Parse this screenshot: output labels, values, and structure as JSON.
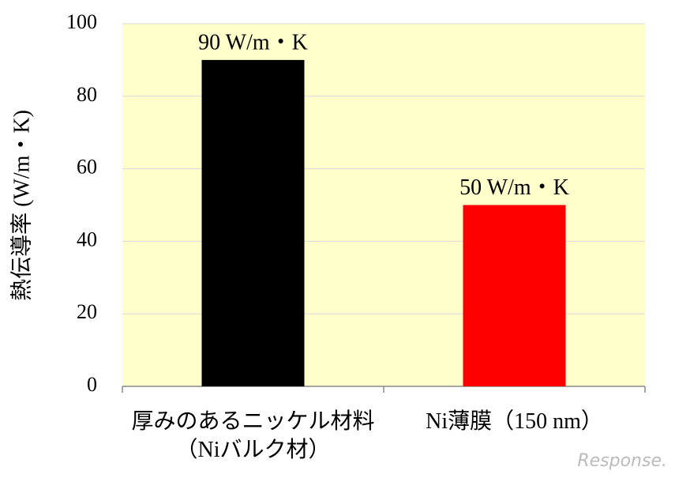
{
  "chart_data": {
    "type": "bar",
    "y_label": "熱伝導率 (W/m・K)",
    "categories": [
      "厚みのあるニッケル材料\n（Niバルク材）",
      "Ni薄膜（150 nm）"
    ],
    "values": [
      90,
      50
    ],
    "value_labels": [
      "90 W/m・K",
      "50 W/m・K"
    ],
    "colors": [
      "#000000",
      "#ff0000"
    ],
    "background": "#ffffcc",
    "ylim": [
      0,
      100
    ],
    "yticks": [
      0,
      20,
      40,
      60,
      80,
      100
    ],
    "grid": true,
    "watermark": "Response."
  }
}
